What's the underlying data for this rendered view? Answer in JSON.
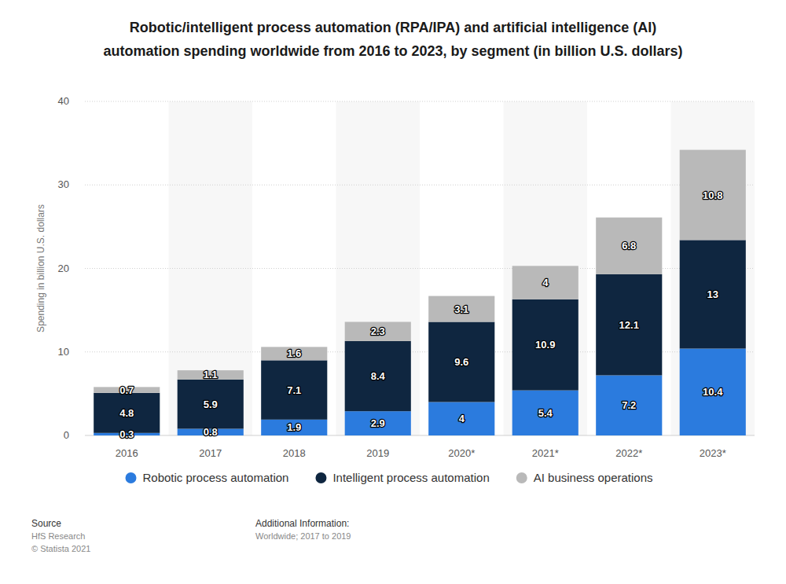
{
  "chart_data": {
    "type": "bar",
    "title": "Robotic/intelligent process automation (RPA/IPA) and artificial intelligence (AI) automation spending worldwide from 2016 to 2023, by segment (in billion U.S. dollars)",
    "y_label": "Spending in billion U.S. dollars",
    "categories": [
      "2016",
      "2017",
      "2018",
      "2019",
      "2020*",
      "2021*",
      "2022*",
      "2023*"
    ],
    "series": [
      {
        "name": "Robotic process automation",
        "color": "#2b7bde",
        "values": [
          0.3,
          0.8,
          1.9,
          2.9,
          4,
          5.4,
          7.2,
          10.4
        ]
      },
      {
        "name": "Intelligent process automation",
        "color": "#0f2640",
        "values": [
          4.8,
          5.9,
          7.1,
          8.4,
          9.6,
          10.9,
          12.1,
          13
        ]
      },
      {
        "name": "AI business operations",
        "color": "#b9b9b9",
        "values": [
          0.7,
          1.1,
          1.6,
          2.3,
          3.1,
          4,
          6.8,
          10.8
        ]
      }
    ],
    "ylim": [
      0,
      40
    ],
    "yticks": [
      0,
      10,
      20,
      30,
      40
    ],
    "grid": true,
    "stacked": true,
    "data_labels": true,
    "legend": "bottom",
    "source_label": "Source",
    "source": [
      "HfS Research",
      "© Statista 2021"
    ],
    "info_label": "Additional Information:",
    "info": "Worldwide; 2017 to 2019"
  }
}
